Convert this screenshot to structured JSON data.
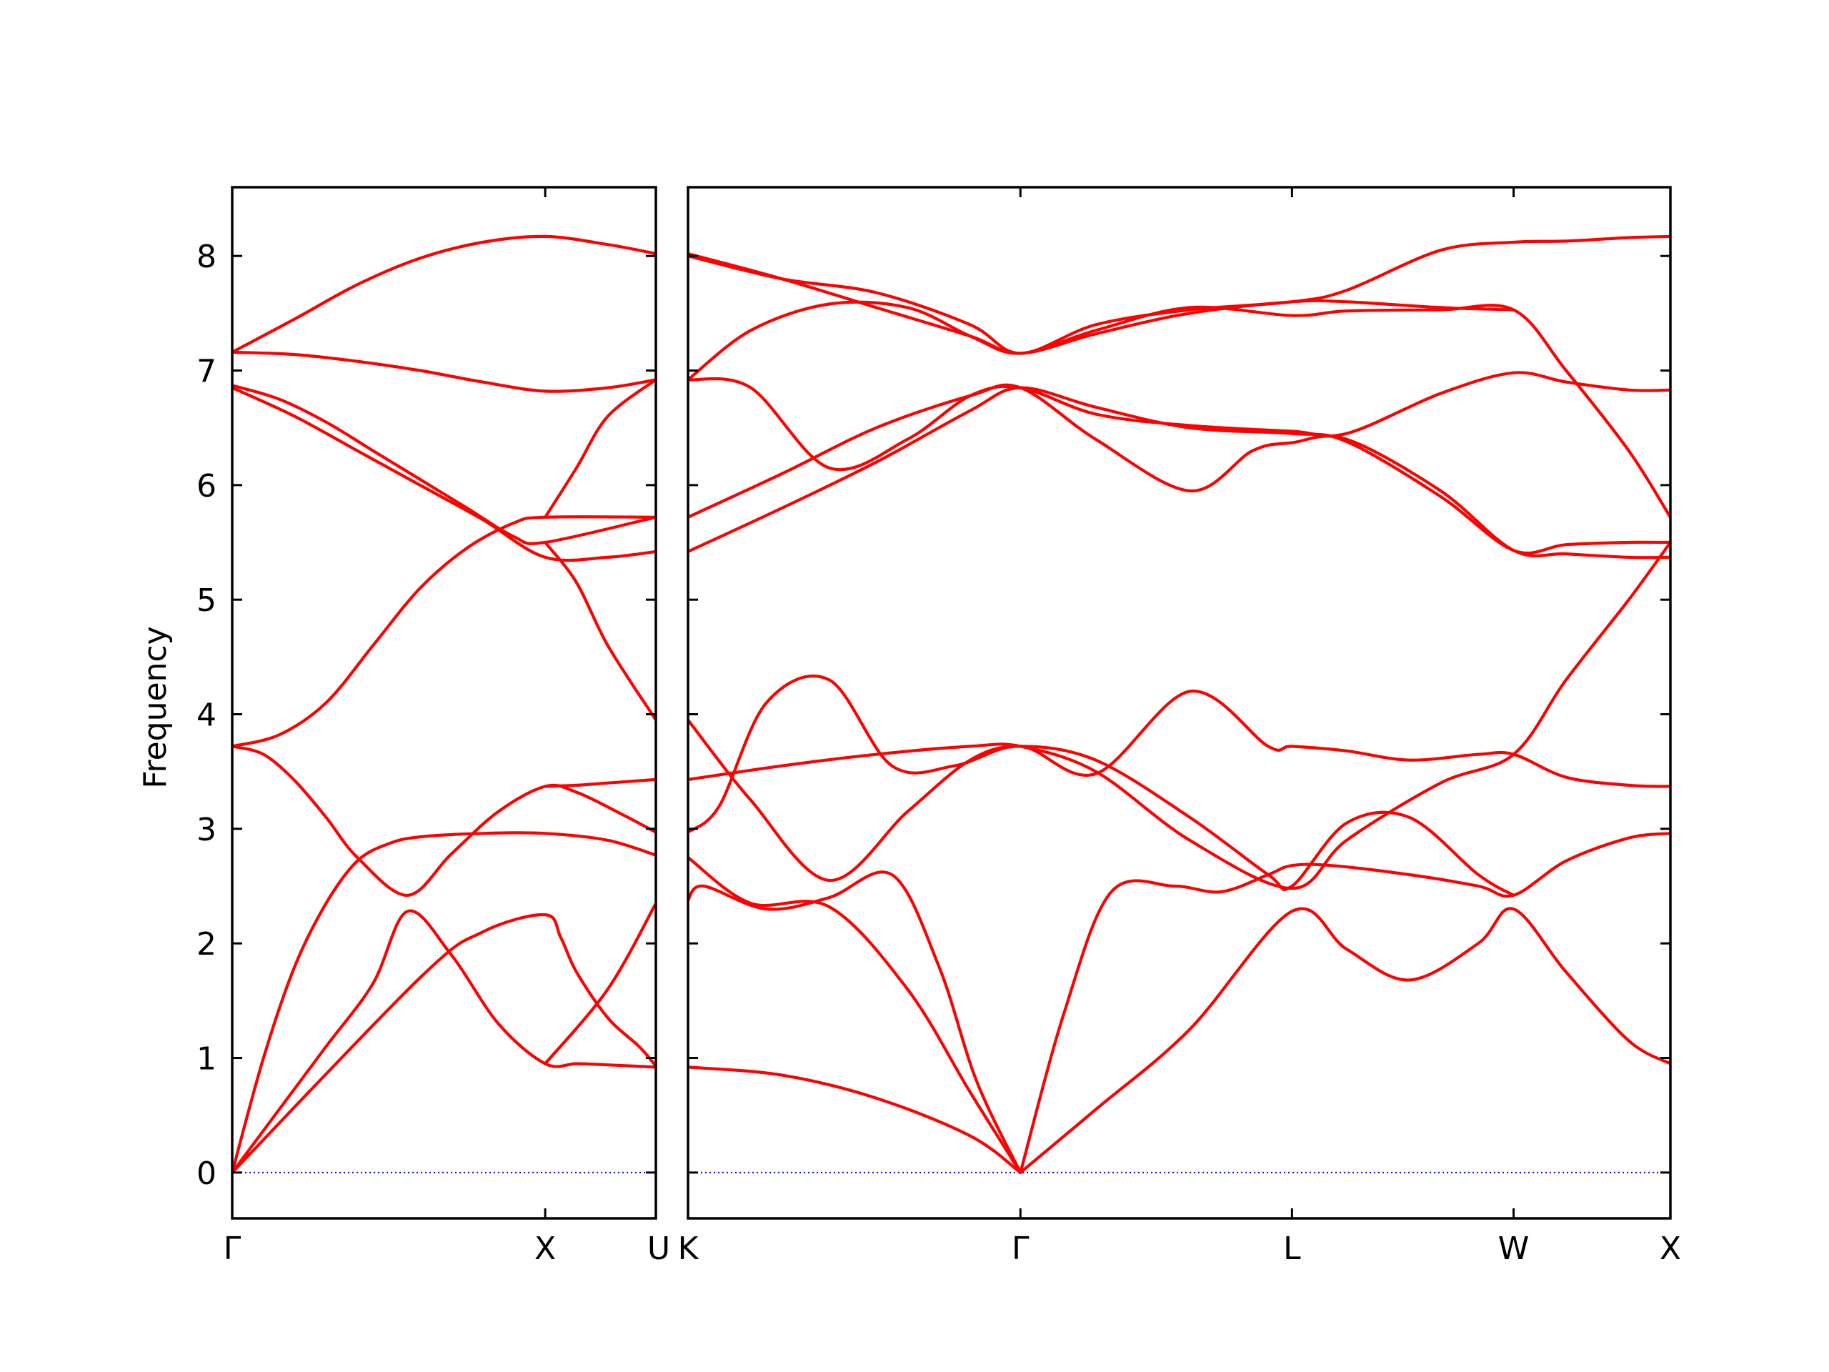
{
  "chart_data": {
    "type": "line",
    "title": "",
    "ylabel": "Frequency",
    "ylim": [
      -0.4,
      8.6
    ],
    "yticks": [
      "0",
      "1",
      "2",
      "3",
      "4",
      "5",
      "6",
      "7",
      "8"
    ],
    "colors": {
      "band": "#ff0000",
      "zero_line": "#0000cc"
    },
    "grid": false,
    "panels": [
      {
        "xlabels": [
          {
            "text": "Γ",
            "x": 0.0
          },
          {
            "text": "X",
            "x": 1.0
          },
          {
            "text": "U",
            "x": 1.3536
          }
        ],
        "xlim": [
          0.0,
          1.3536
        ],
        "bands": [
          {
            "x": [
              0,
              0.15,
              0.3,
              0.45,
              0.56,
              0.7,
              0.85,
              1.0,
              1.1,
              1.2,
              1.3536
            ],
            "y": [
              0.0,
              0.55,
              1.1,
              1.65,
              2.28,
              1.9,
              1.3,
              0.95,
              0.95,
              0.94,
              0.92
            ]
          },
          {
            "x": [
              0,
              0.1,
              0.2,
              0.3,
              0.4,
              0.5,
              0.6,
              0.8,
              1.0,
              1.2,
              1.3536
            ],
            "y": [
              0.0,
              1.0,
              1.8,
              2.35,
              2.72,
              2.87,
              2.93,
              2.96,
              2.96,
              2.9,
              2.77
            ]
          },
          {
            "x": [
              0,
              0.1,
              0.2,
              0.3,
              0.4,
              0.56,
              0.7,
              0.85,
              1.0,
              1.1,
              1.25,
              1.3536
            ],
            "y": [
              3.72,
              3.65,
              3.42,
              3.1,
              2.75,
              2.42,
              2.78,
              3.15,
              3.37,
              3.32,
              3.12,
              2.97
            ]
          },
          {
            "x": [
              0,
              0.6,
              0.8,
              1.0,
              1.05,
              1.1,
              1.2,
              1.3,
              1.3536
            ],
            "y": [
              0.0,
              1.7,
              2.1,
              2.25,
              2.05,
              1.75,
              1.35,
              1.1,
              0.93
            ]
          },
          {
            "x": [
              0,
              0.15,
              0.3,
              0.45,
              0.6,
              0.75,
              0.9,
              1.0,
              1.3536
            ],
            "y": [
              3.72,
              3.82,
              4.1,
              4.6,
              5.1,
              5.45,
              5.67,
              5.72,
              5.72
            ]
          },
          {
            "x": [
              0,
              0.15,
              0.3,
              0.45,
              0.6,
              0.75,
              0.9,
              1.0,
              1.3536
            ],
            "y": [
              6.87,
              6.75,
              6.55,
              6.3,
              6.05,
              5.8,
              5.55,
              5.5,
              5.72
            ]
          },
          {
            "x": [
              0,
              0.2,
              0.4,
              0.6,
              0.8,
              1.0,
              1.2,
              1.3536
            ],
            "y": [
              6.85,
              6.6,
              6.3,
              6.0,
              5.7,
              5.37,
              5.37,
              5.42
            ]
          },
          {
            "x": [
              0,
              0.2,
              0.4,
              0.6,
              0.8,
              1.0,
              1.2,
              1.3536
            ],
            "y": [
              7.16,
              7.14,
              7.08,
              7.0,
              6.9,
              6.82,
              6.85,
              6.92
            ]
          },
          {
            "x": [
              0,
              0.2,
              0.4,
              0.6,
              0.8,
              1.0,
              1.2,
              1.3536
            ],
            "y": [
              7.16,
              7.45,
              7.75,
              7.98,
              8.12,
              8.17,
              8.1,
              8.02
            ]
          },
          {
            "x": [
              1.0,
              1.1,
              1.2,
              1.3536
            ],
            "y": [
              3.37,
              3.38,
              3.4,
              3.43
            ]
          },
          {
            "x": [
              1.0,
              1.1,
              1.2,
              1.3536
            ],
            "y": [
              5.5,
              5.15,
              4.6,
              3.95
            ]
          },
          {
            "x": [
              1.0,
              1.1,
              1.2,
              1.3536
            ],
            "y": [
              5.72,
              6.15,
              6.6,
              6.92
            ]
          },
          {
            "x": [
              1.0,
              1.2,
              1.3536
            ],
            "y": [
              0.95,
              1.6,
              2.35
            ]
          }
        ]
      },
      {
        "xlabels": [
          {
            "text": "K",
            "x": 0.0
          },
          {
            "text": "Γ",
            "x": 1.06
          },
          {
            "text": "L",
            "x": 1.926
          },
          {
            "text": "W",
            "x": 2.6327
          },
          {
            "text": "X",
            "x": 3.1327
          }
        ],
        "xlim": [
          0.0,
          3.1327
        ],
        "bands": [
          {
            "x": [
              0.0,
              0.3,
              0.6,
              0.9,
              1.06
            ],
            "y": [
              0.92,
              0.85,
              0.65,
              0.32,
              0.0
            ]
          },
          {
            "x": [
              1.06,
              1.3,
              1.6,
              1.926,
              2.1,
              2.3,
              2.52,
              2.6327,
              2.8,
              3.0,
              3.1327
            ],
            "y": [
              0.0,
              0.55,
              1.25,
              2.28,
              1.95,
              1.68,
              2.0,
              2.3,
              1.75,
              1.15,
              0.95
            ]
          },
          {
            "x": [
              0.0,
              0.2,
              0.45,
              0.7,
              0.9,
              1.06
            ],
            "y": [
              2.75,
              2.35,
              2.32,
              1.6,
              0.7,
              0.0
            ]
          },
          {
            "x": [
              0.0,
              0.05,
              0.25,
              0.45,
              0.65,
              0.8,
              0.92,
              1.06
            ],
            "y": [
              2.38,
              2.5,
              2.3,
              2.4,
              2.6,
              1.8,
              0.8,
              0.0
            ]
          },
          {
            "x": [
              1.06,
              1.2,
              1.35,
              1.55,
              1.7,
              1.85,
              1.926,
              2.05,
              2.3,
              2.52,
              2.6327,
              2.8,
              3.0,
              3.1327
            ],
            "y": [
              0.0,
              1.4,
              2.45,
              2.5,
              2.45,
              2.6,
              2.68,
              2.68,
              2.6,
              2.5,
              2.42,
              2.72,
              2.92,
              2.96
            ]
          },
          {
            "x": [
              0.0,
              0.2,
              0.45,
              0.7,
              0.9,
              1.06,
              1.3,
              1.6,
              1.85,
              1.926,
              2.1,
              2.3,
              2.52,
              2.6327
            ],
            "y": [
              3.95,
              3.25,
              2.55,
              3.15,
              3.6,
              3.72,
              3.6,
              3.1,
              2.6,
              2.5,
              3.05,
              3.1,
              2.6,
              2.42
            ]
          },
          {
            "x": [
              0.0,
              0.1,
              0.25,
              0.45,
              0.65,
              0.85,
              1.06,
              1.3,
              1.6,
              1.85,
              1.926,
              2.1,
              2.3,
              2.52,
              2.6327,
              2.8,
              3.0,
              3.1327
            ],
            "y": [
              2.97,
              3.2,
              4.1,
              4.3,
              3.55,
              3.55,
              3.72,
              3.48,
              4.2,
              3.72,
              3.72,
              3.68,
              3.6,
              3.65,
              3.65,
              3.45,
              3.38,
              3.37
            ]
          },
          {
            "x": [
              0.0,
              0.3,
              0.6,
              0.9,
              1.06,
              1.3,
              1.6,
              1.926,
              2.1,
              2.4,
              2.6327,
              2.8,
              3.0,
              3.1327
            ],
            "y": [
              3.43,
              3.55,
              3.65,
              3.72,
              3.72,
              3.5,
              2.9,
              2.48,
              2.9,
              3.4,
              3.65,
              4.3,
              5.0,
              5.5
            ]
          },
          {
            "x": [
              0.0,
              0.3,
              0.6,
              0.9,
              1.06,
              1.3,
              1.6,
              1.926,
              2.1,
              2.4,
              2.6327,
              2.8,
              3.0,
              3.1327
            ],
            "y": [
              5.42,
              5.8,
              6.2,
              6.65,
              6.85,
              6.68,
              6.5,
              6.45,
              6.38,
              5.9,
              5.43,
              5.48,
              5.5,
              5.5
            ]
          },
          {
            "x": [
              0.0,
              0.3,
              0.6,
              0.9,
              1.06,
              1.3,
              1.6,
              1.8,
              1.926,
              2.1,
              2.4,
              2.6327,
              2.8,
              3.0,
              3.1327
            ],
            "y": [
              5.72,
              6.1,
              6.5,
              6.78,
              6.85,
              6.4,
              5.95,
              6.3,
              6.37,
              6.4,
              5.95,
              5.43,
              5.4,
              5.37,
              5.37
            ]
          },
          {
            "x": [
              0.0,
              0.2,
              0.45,
              0.7,
              0.9,
              1.06,
              1.3,
              1.6,
              1.926,
              2.1,
              2.4,
              2.6327,
              2.8,
              3.0,
              3.1327
            ],
            "y": [
              6.92,
              6.85,
              6.15,
              6.4,
              6.78,
              6.85,
              6.62,
              6.52,
              6.47,
              6.45,
              6.8,
              6.98,
              6.9,
              6.83,
              6.83
            ]
          },
          {
            "x": [
              0.0,
              0.2,
              0.45,
              0.7,
              0.9,
              1.06,
              1.3,
              1.6,
              1.926,
              2.1,
              2.4,
              2.6327,
              2.8,
              3.0,
              3.1327
            ],
            "y": [
              6.92,
              7.35,
              7.58,
              7.55,
              7.3,
              7.15,
              7.35,
              7.55,
              7.48,
              7.52,
              7.53,
              7.53,
              7.0,
              6.3,
              5.72
            ]
          },
          {
            "x": [
              0.0,
              0.3,
              0.6,
              0.9,
              1.06,
              1.3,
              1.6,
              1.926,
              2.1,
              2.4,
              2.6327
            ],
            "y": [
              8.02,
              7.8,
              7.55,
              7.3,
              7.15,
              7.32,
              7.5,
              7.6,
              7.6,
              7.55,
              7.53
            ]
          },
          {
            "x": [
              0.0,
              0.3,
              0.6,
              0.9,
              1.06,
              1.3,
              1.6,
              1.926,
              2.1,
              2.4,
              2.6327,
              2.8,
              3.0,
              3.1327
            ],
            "y": [
              8.0,
              7.8,
              7.68,
              7.4,
              7.15,
              7.4,
              7.53,
              7.6,
              7.7,
              8.05,
              8.12,
              8.13,
              8.16,
              8.17
            ]
          }
        ]
      }
    ]
  }
}
